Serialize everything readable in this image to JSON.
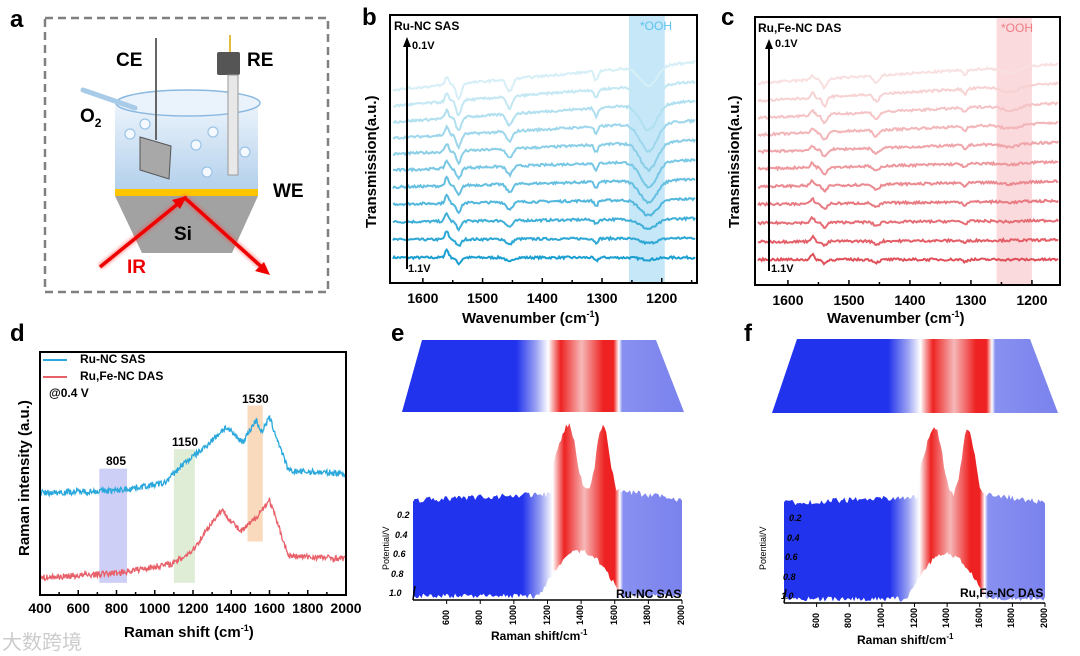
{
  "panel_labels": {
    "a": "a",
    "b": "b",
    "c": "c",
    "d": "d",
    "e": "e",
    "f": "f"
  },
  "schematic": {
    "ce": "CE",
    "re": "RE",
    "o2": "O",
    "o2_sub": "2",
    "we": "WE",
    "si": "Si",
    "ir": "IR"
  },
  "watermark": "大数跨境",
  "colors": {
    "blue_curve": "#2aa8dc",
    "red_curve": "#e8616a",
    "ooh_blue": "#c5e7f8",
    "ooh_red": "#fbdadd",
    "band805": "#c9caf5",
    "band1150": "#dcebd3",
    "band1530": "#f9d6b6",
    "surf_blue": "#2233ee",
    "surf_red": "#ee2222"
  },
  "chart_data": [
    {
      "id": "b",
      "type": "line",
      "title": "Ru-NC SAS",
      "annotation": "*OOH",
      "xlabel": "Wavenumber (cm",
      "xlabel_sup": "-1",
      "xlabel_end": ")",
      "ylabel": "Transmission(a.u.)",
      "xlim": [
        1655,
        1141
      ],
      "ylim": [
        -1.3,
        12.4
      ],
      "ticks": [
        "1600",
        "1500",
        "1400",
        "1300",
        "1200"
      ],
      "ooh_band": [
        1255,
        1195
      ],
      "arrow_top": "0.1V",
      "arrow_bottom": "1.1V",
      "series": [
        {
          "offset": 0,
          "ooh_dip": 0.1,
          "tilt": 0.0
        },
        {
          "offset": 1,
          "ooh_dip": 0.25,
          "tilt": 0.1
        },
        {
          "offset": 2,
          "ooh_dip": 0.5,
          "tilt": 0.2
        },
        {
          "offset": 3,
          "ooh_dip": 0.8,
          "tilt": 0.3
        },
        {
          "offset": 4,
          "ooh_dip": 1.1,
          "tilt": 0.45
        },
        {
          "offset": 5,
          "ooh_dip": 1.3,
          "tilt": 0.6
        },
        {
          "offset": 6,
          "ooh_dip": 1.4,
          "tilt": 0.8
        },
        {
          "offset": 7,
          "ooh_dip": 1.4,
          "tilt": 1.0
        },
        {
          "offset": 8,
          "ooh_dip": 1.3,
          "tilt": 1.2
        },
        {
          "offset": 9,
          "ooh_dip": 1.2,
          "tilt": 1.4
        },
        {
          "offset": 10,
          "ooh_dip": 1.0,
          "tilt": 1.6
        }
      ]
    },
    {
      "id": "c",
      "type": "line",
      "title": "Ru,Fe-NC DAS",
      "annotation": "*OOH",
      "xlabel": "Wavenumber (cm",
      "xlabel_sup": "-1",
      "xlabel_end": ")",
      "ylabel": "Transmission(a.u.)",
      "xlim": [
        1654,
        1154
      ],
      "ylim": [
        -1.3,
        12.4
      ],
      "ticks": [
        "1600",
        "1500",
        "1400",
        "1300",
        "1200"
      ],
      "ooh_band": [
        1258,
        1200
      ],
      "arrow_top": "0.1V",
      "arrow_bottom": "1.1V",
      "series": [
        {
          "offset": 0,
          "ooh_dip": 0.0,
          "tilt": 0.0
        },
        {
          "offset": 1,
          "ooh_dip": 0.0,
          "tilt": 0.1
        },
        {
          "offset": 2,
          "ooh_dip": 0.05,
          "tilt": 0.15
        },
        {
          "offset": 3,
          "ooh_dip": 0.05,
          "tilt": 0.2
        },
        {
          "offset": 4,
          "ooh_dip": 0.1,
          "tilt": 0.3
        },
        {
          "offset": 5,
          "ooh_dip": 0.1,
          "tilt": 0.4
        },
        {
          "offset": 6,
          "ooh_dip": 0.15,
          "tilt": 0.55
        },
        {
          "offset": 7,
          "ooh_dip": 0.2,
          "tilt": 0.7
        },
        {
          "offset": 8,
          "ooh_dip": 0.25,
          "tilt": 0.85
        },
        {
          "offset": 9,
          "ooh_dip": 0.3,
          "tilt": 1.0
        },
        {
          "offset": 10,
          "ooh_dip": 0.3,
          "tilt": 1.1
        }
      ]
    },
    {
      "id": "d",
      "type": "line",
      "xlabel": "Raman shift (cm",
      "xlabel_sup": "-1",
      "xlabel_end": ")",
      "ylabel": "Raman intensity (a.u.)",
      "xlim": [
        400,
        2000
      ],
      "ylim": [
        0,
        1
      ],
      "ticks": [
        "400",
        "600",
        "800",
        "1000",
        "1200",
        "1400",
        "1600",
        "1800",
        "2000"
      ],
      "condition": "@0.4 V",
      "bands": [
        {
          "label": "805",
          "range": [
            710,
            855
          ],
          "y": [
            0.05,
            0.52
          ]
        },
        {
          "label": "1150",
          "range": [
            1100,
            1210
          ],
          "y": [
            0.05,
            0.6
          ]
        },
        {
          "label": "1530",
          "range": [
            1485,
            1565
          ],
          "y": [
            0.22,
            0.78
          ]
        }
      ],
      "series": [
        {
          "name": "Ru-NC SAS",
          "x": [
            400,
            800,
            1050,
            1150,
            1250,
            1370,
            1460,
            1530,
            1560,
            1600,
            1700,
            2000
          ],
          "y": [
            0.42,
            0.43,
            0.46,
            0.54,
            0.6,
            0.69,
            0.63,
            0.72,
            0.67,
            0.73,
            0.51,
            0.5
          ]
        },
        {
          "name": "Ru,Fe-NC DAS",
          "x": [
            400,
            800,
            1100,
            1200,
            1300,
            1350,
            1450,
            1520,
            1600,
            1700,
            2000
          ],
          "y": [
            0.07,
            0.09,
            0.13,
            0.185,
            0.3,
            0.35,
            0.26,
            0.31,
            0.39,
            0.16,
            0.15
          ]
        }
      ]
    },
    {
      "id": "e",
      "type": "heatmap",
      "sample": "Ru-NC SAS",
      "xlabel": "Raman shift/cm",
      "xlabel_sup": "-1",
      "ylabel": "Potential/V",
      "xticks": [
        "600",
        "800",
        "1000",
        "1200",
        "1400",
        "1600",
        "1800",
        "2000"
      ],
      "yticks": [
        "0.2",
        "0.4",
        "0.6",
        "0.8",
        "1.0"
      ],
      "peaks": [
        1330,
        1530
      ]
    },
    {
      "id": "f",
      "type": "heatmap",
      "sample": "Ru,Fe-NC DAS",
      "xlabel": "Raman shift/cm",
      "xlabel_sup": "-1",
      "ylabel": "Potential/V",
      "xticks": [
        "600",
        "800",
        "1000",
        "1200",
        "1400",
        "1600",
        "1800",
        "2000"
      ],
      "yticks": [
        "0.2",
        "0.4",
        "0.6",
        "0.8",
        "1.0"
      ],
      "peaks": [
        1330,
        1540
      ]
    }
  ]
}
